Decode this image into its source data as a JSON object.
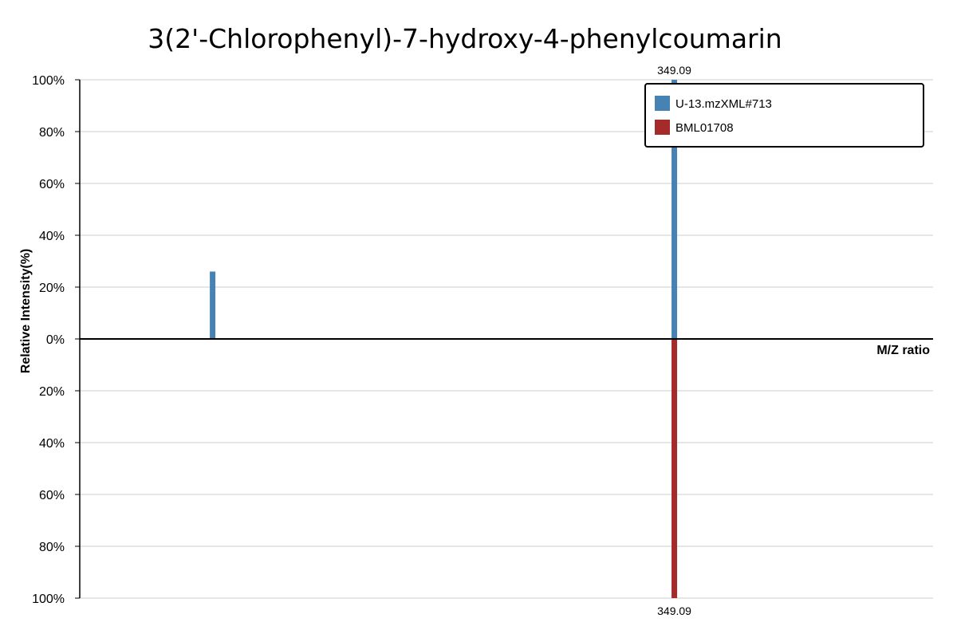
{
  "chart_data": {
    "type": "bar",
    "title": "3(2'-Chlorophenyl)-7-hydroxy-4-phenylcoumarin",
    "xlabel": "M/Z ratio",
    "ylabel": "Relative Intensity(%)",
    "x_range": [
      239,
      397
    ],
    "y_range": [
      -100,
      100
    ],
    "y_ticks": [
      {
        "value": 100,
        "label": "100%"
      },
      {
        "value": 80,
        "label": "80%"
      },
      {
        "value": 60,
        "label": "60%"
      },
      {
        "value": 40,
        "label": "40%"
      },
      {
        "value": 20,
        "label": "20%"
      },
      {
        "value": 0,
        "label": "0%"
      },
      {
        "value": -20,
        "label": "20%"
      },
      {
        "value": -40,
        "label": "40%"
      },
      {
        "value": -60,
        "label": "60%"
      },
      {
        "value": -80,
        "label": "80%"
      },
      {
        "value": -100,
        "label": "100%"
      }
    ],
    "grid": true,
    "legend_position": "top-right",
    "series": [
      {
        "name": "U-13.mzXML#713",
        "color": "#4682b4",
        "direction": "up",
        "peaks": [
          {
            "mz": 263.6,
            "intensity": 26
          },
          {
            "mz": 349.09,
            "intensity": 100,
            "label": "349.09"
          }
        ]
      },
      {
        "name": "BML01708",
        "color": "#a52a2a",
        "direction": "down",
        "peaks": [
          {
            "mz": 349.09,
            "intensity": 100,
            "label": "349.09"
          }
        ]
      }
    ]
  }
}
